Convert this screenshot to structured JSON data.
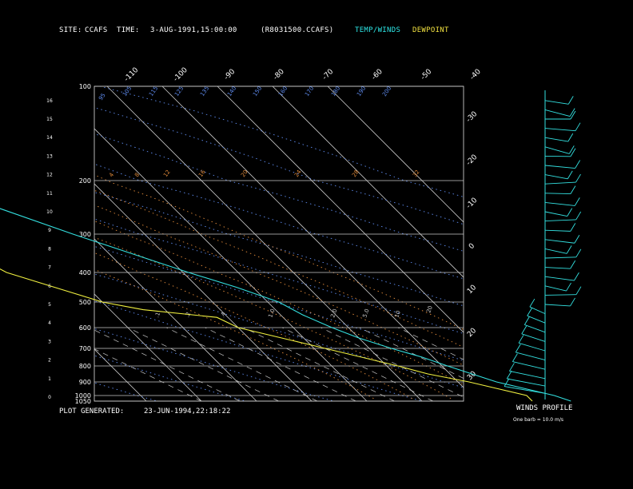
{
  "header": {
    "site_label": "SITE:",
    "site": "CCAFS",
    "time_label": "TIME:",
    "time": "3-AUG-1991,15:00:00",
    "file": "(R8031500.CCAFS)",
    "temp_legend": "TEMP/WINDS",
    "dew_legend": "DEWPOINT"
  },
  "footer": {
    "generated_label": "PLOT GENERATED:",
    "generated": "23-JUN-1994,22:18:22",
    "winds_title": "WINDS PROFILE",
    "winds_note": "One barb = 10.0 m/s"
  },
  "colors": {
    "background": "#000000",
    "frame": "#c8c8c8",
    "temp": "#33e0e0",
    "dewpoint": "#f0f040",
    "dry_adiabat": "#5f8cf0",
    "moist_adiabat": "#e08a3a",
    "mixing_ratio": "#c8c8c8",
    "legend_temp": "#2ee8e8",
    "legend_dew": "#f0e040"
  },
  "chart_data": {
    "type": "skew-t",
    "pressure_levels": [
      100,
      200,
      300,
      400,
      500,
      600,
      700,
      800,
      900,
      1000,
      1050
    ],
    "height_km_ticks": [
      "0",
      "1",
      "2",
      "3",
      "4",
      "5",
      "6",
      "7",
      "8",
      "9",
      "10",
      "11",
      "12",
      "13",
      "14",
      "15",
      "16"
    ],
    "temperature_isotherm_labels": [
      "-110",
      "-100",
      "-90",
      "-80",
      "-70",
      "-60",
      "-50",
      "-40",
      "-30",
      "-20",
      "-10",
      "0",
      "10",
      "20",
      "30"
    ],
    "temperature_isotherm_values": [
      -110,
      -100,
      -90,
      -80,
      -70,
      -60,
      -50,
      -40,
      -30,
      -20,
      -10,
      0,
      10,
      20,
      30
    ],
    "dry_adiabat_labels": [
      "95",
      "105",
      "115",
      "125",
      "135",
      "140",
      "150",
      "160",
      "170",
      "180",
      "190",
      "200"
    ],
    "theta_e_labels": [
      "4",
      "8",
      "12",
      "16",
      "20",
      "24",
      "28",
      "32"
    ],
    "mixing_ratio_labels": [
      ".1",
      ".2",
      ".4",
      "1.0",
      "2.0",
      "5.0",
      "10",
      "20"
    ],
    "temperature_profile": {
      "name": "TEMP/WINDS",
      "points": [
        {
          "p": 1050,
          "t": 27
        },
        {
          "p": 1000,
          "t": 25
        },
        {
          "p": 950,
          "t": 21
        },
        {
          "p": 900,
          "t": 17
        },
        {
          "p": 850,
          "t": 14
        },
        {
          "p": 800,
          "t": 11
        },
        {
          "p": 750,
          "t": 8
        },
        {
          "p": 700,
          "t": 4
        },
        {
          "p": 650,
          "t": 0
        },
        {
          "p": 600,
          "t": -3
        },
        {
          "p": 550,
          "t": -6
        },
        {
          "p": 500,
          "t": -8
        },
        {
          "p": 450,
          "t": -13
        },
        {
          "p": 400,
          "t": -19
        },
        {
          "p": 350,
          "t": -26
        },
        {
          "p": 300,
          "t": -33
        },
        {
          "p": 250,
          "t": -42
        },
        {
          "p": 200,
          "t": -53
        },
        {
          "p": 175,
          "t": -60
        },
        {
          "p": 150,
          "t": -68
        },
        {
          "p": 125,
          "t": -72
        },
        {
          "p": 110,
          "t": -74
        },
        {
          "p": 100,
          "t": -72
        }
      ]
    },
    "dewpoint_profile": {
      "name": "DEWPOINT",
      "points": [
        {
          "p": 1050,
          "t": 20
        },
        {
          "p": 1000,
          "t": 20
        },
        {
          "p": 950,
          "t": 16
        },
        {
          "p": 900,
          "t": 12
        },
        {
          "p": 850,
          "t": 6
        },
        {
          "p": 800,
          "t": 2
        },
        {
          "p": 750,
          "t": -3
        },
        {
          "p": 700,
          "t": -8
        },
        {
          "p": 650,
          "t": -14
        },
        {
          "p": 600,
          "t": -20
        },
        {
          "p": 560,
          "t": -22
        },
        {
          "p": 530,
          "t": -34
        },
        {
          "p": 500,
          "t": -40
        },
        {
          "p": 450,
          "t": -46
        },
        {
          "p": 400,
          "t": -52
        },
        {
          "p": 350,
          "t": -55
        },
        {
          "p": 300,
          "t": -58
        },
        {
          "p": 250,
          "t": -63
        },
        {
          "p": 200,
          "t": -68
        },
        {
          "p": 180,
          "t": -70
        }
      ]
    },
    "wind_barb_levels_km": [
      0.2,
      0.6,
      1.0,
      1.5,
      2.0,
      2.5,
      3.0,
      3.5,
      4.0,
      4.5,
      5.0,
      5.5,
      6.0,
      6.5,
      7.0,
      7.5,
      8.0,
      8.5,
      9.0,
      9.5,
      10.0,
      10.5,
      11.0,
      11.5,
      12.0,
      12.5,
      13.0,
      13.5,
      14.0,
      14.5,
      15.0,
      15.5,
      16.0
    ]
  }
}
